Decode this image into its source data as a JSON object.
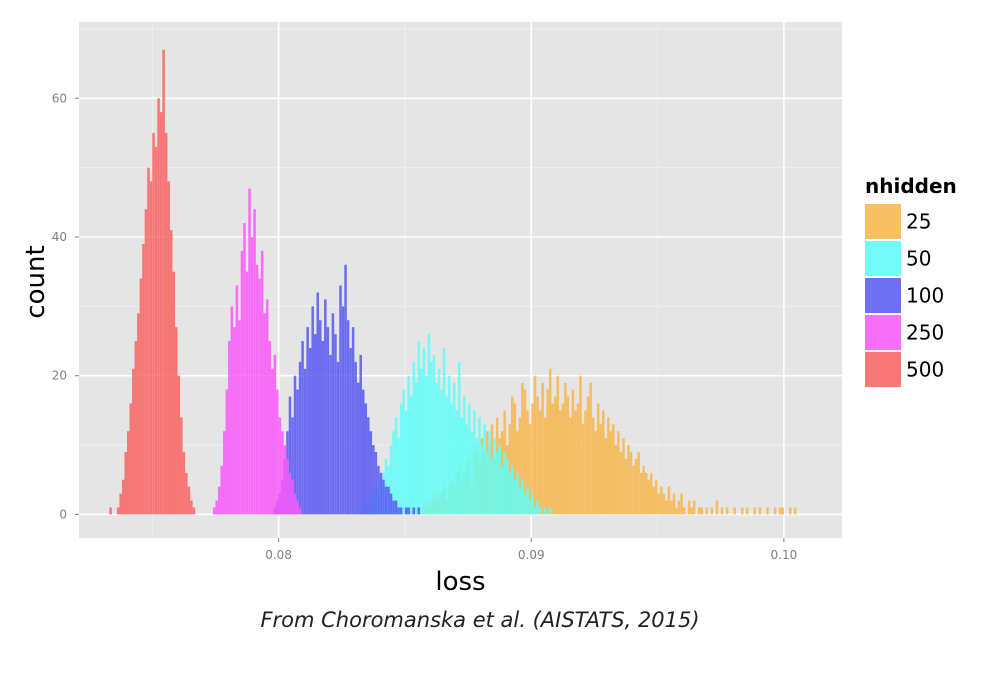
{
  "caption": "From Choromanska et al. (AISTATS, 2015)",
  "chart_data": {
    "type": "histogram",
    "xlabel": "loss",
    "ylabel": "count",
    "xlim": [
      0.0721,
      0.1023
    ],
    "ylim": [
      -3.4,
      71
    ],
    "xticks": [
      0.08,
      0.09,
      0.1
    ],
    "xtick_labels": [
      "0.08",
      "0.09",
      "0.10"
    ],
    "yticks": [
      0,
      20,
      40,
      60
    ],
    "ytick_labels": [
      "0",
      "20",
      "40",
      "60"
    ],
    "grid": true,
    "background": "#e5e5e5",
    "bin_width": 0.0001,
    "legend": {
      "title": "nhidden",
      "placement": "right"
    },
    "series": [
      {
        "name": "25",
        "color": "#f8b74a",
        "x_start": 0.0852,
        "counts": [
          1,
          0,
          1,
          1,
          0,
          1,
          2,
          1,
          2,
          3,
          2,
          3,
          3,
          4,
          2,
          4,
          5,
          4,
          6,
          7,
          5,
          6,
          7,
          8,
          4,
          9,
          10,
          8,
          11,
          9,
          12,
          10,
          13,
          8,
          14,
          11,
          12,
          15,
          10,
          13,
          17,
          16,
          12,
          14,
          19,
          18,
          15,
          13,
          16,
          20,
          17,
          15,
          19,
          14,
          18,
          21,
          16,
          17,
          20,
          15,
          16,
          19,
          17,
          14,
          18,
          15,
          16,
          20,
          13,
          15,
          17,
          19,
          14,
          12,
          16,
          13,
          15,
          11,
          14,
          12,
          13,
          10,
          12,
          9,
          11,
          8,
          10,
          9,
          7,
          8,
          9,
          6,
          7,
          6,
          5,
          6,
          4,
          5,
          3,
          4,
          3,
          2,
          4,
          2,
          3,
          1,
          2,
          3,
          1,
          0,
          2,
          1,
          2,
          0,
          1,
          1,
          0,
          1,
          0,
          1,
          0,
          2,
          0,
          1,
          0,
          1,
          0,
          0,
          1,
          0,
          0,
          1,
          0,
          1,
          0,
          0,
          1,
          0,
          1,
          0,
          0,
          1,
          0,
          0,
          1,
          0,
          1,
          1,
          0,
          0,
          1,
          0,
          1
        ]
      },
      {
        "name": "50",
        "color": "#5efefa",
        "x_start": 0.0831,
        "counts": [
          1,
          0,
          1,
          2,
          1,
          2,
          3,
          4,
          3,
          5,
          6,
          8,
          7,
          10,
          12,
          14,
          11,
          16,
          18,
          15,
          20,
          17,
          22,
          19,
          25,
          21,
          24,
          20,
          26,
          22,
          23,
          19,
          21,
          18,
          24,
          17,
          20,
          16,
          19,
          15,
          22,
          14,
          17,
          13,
          16,
          12,
          15,
          11,
          14,
          10,
          13,
          9,
          12,
          8,
          11,
          9,
          10,
          7,
          9,
          8,
          6,
          7,
          5,
          6,
          4,
          5,
          3,
          4,
          2,
          3,
          1,
          2,
          1,
          0,
          1,
          0,
          1
        ]
      },
      {
        "name": "100",
        "color": "#5858f4",
        "x_start": 0.0798,
        "counts": [
          1,
          2,
          3,
          5,
          8,
          12,
          17,
          14,
          20,
          18,
          22,
          25,
          21,
          27,
          24,
          30,
          26,
          32,
          28,
          25,
          31,
          27,
          23,
          29,
          26,
          22,
          33,
          30,
          36,
          28,
          24,
          27,
          22,
          19,
          23,
          18,
          16,
          14,
          12,
          10,
          9,
          7,
          6,
          5,
          4,
          4,
          3,
          2,
          2,
          1,
          1,
          0,
          1,
          1,
          0,
          1,
          0,
          1
        ]
      },
      {
        "name": "250",
        "color": "#fb58fb",
        "x_start": 0.0774,
        "counts": [
          1,
          2,
          4,
          7,
          12,
          18,
          25,
          30,
          27,
          33,
          28,
          38,
          42,
          35,
          47,
          40,
          44,
          36,
          34,
          38,
          29,
          31,
          25,
          21,
          23,
          18,
          14,
          12,
          10,
          8,
          6,
          5,
          3,
          2,
          1
        ]
      },
      {
        "name": "500",
        "color": "#fa6262",
        "x_start": 0.0733,
        "counts": [
          1,
          0,
          0,
          1,
          3,
          5,
          9,
          12,
          16,
          21,
          25,
          29,
          34,
          39,
          44,
          50,
          48,
          55,
          53,
          60,
          58,
          67,
          55,
          48,
          41,
          35,
          27,
          20,
          14,
          9,
          6,
          4,
          2,
          1
        ]
      }
    ]
  }
}
